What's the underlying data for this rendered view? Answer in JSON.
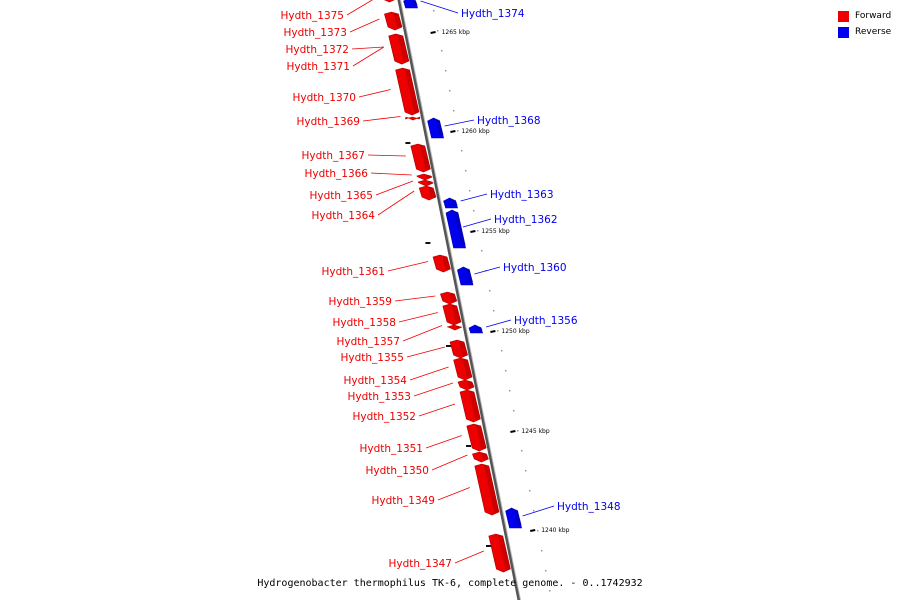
{
  "caption": "Hydrogenobacter thermophilus TK-6, complete genome. - 0..1742932",
  "legend": [
    {
      "label": "Forward",
      "color": "#ee0000"
    },
    {
      "label": "Reverse",
      "color": "#0000ee"
    }
  ],
  "colors": {
    "forward": "#ee0000",
    "reverse": "#0000ee",
    "backbone": "#888888"
  },
  "ticks": [
    "1265 kbp",
    "1260 kbp",
    "1255 kbp",
    "1250 kbp",
    "1245 kbp",
    "1240 kbp"
  ],
  "genes": [
    {
      "name": "Hydth_1375",
      "strand": "forward"
    },
    {
      "name": "Hydth_1374",
      "strand": "reverse"
    },
    {
      "name": "Hydth_1373",
      "strand": "forward"
    },
    {
      "name": "Hydth_1372",
      "strand": "forward"
    },
    {
      "name": "Hydth_1371",
      "strand": "forward"
    },
    {
      "name": "Hydth_1370",
      "strand": "forward"
    },
    {
      "name": "Hydth_1369",
      "strand": "forward"
    },
    {
      "name": "Hydth_1368",
      "strand": "reverse"
    },
    {
      "name": "Hydth_1367",
      "strand": "forward"
    },
    {
      "name": "Hydth_1366",
      "strand": "forward"
    },
    {
      "name": "Hydth_1365",
      "strand": "forward"
    },
    {
      "name": "Hydth_1364",
      "strand": "forward"
    },
    {
      "name": "Hydth_1363",
      "strand": "reverse"
    },
    {
      "name": "Hydth_1362",
      "strand": "reverse"
    },
    {
      "name": "Hydth_1361",
      "strand": "forward"
    },
    {
      "name": "Hydth_1360",
      "strand": "reverse"
    },
    {
      "name": "Hydth_1359",
      "strand": "forward"
    },
    {
      "name": "Hydth_1358",
      "strand": "forward"
    },
    {
      "name": "Hydth_1357",
      "strand": "forward"
    },
    {
      "name": "Hydth_1356",
      "strand": "reverse"
    },
    {
      "name": "Hydth_1355",
      "strand": "forward"
    },
    {
      "name": "Hydth_1354",
      "strand": "forward"
    },
    {
      "name": "Hydth_1353",
      "strand": "forward"
    },
    {
      "name": "Hydth_1352",
      "strand": "forward"
    },
    {
      "name": "Hydth_1351",
      "strand": "forward"
    },
    {
      "name": "Hydth_1350",
      "strand": "forward"
    },
    {
      "name": "Hydth_1349",
      "strand": "forward"
    },
    {
      "name": "Hydth_1348",
      "strand": "reverse"
    },
    {
      "name": "Hydth_1347",
      "strand": "forward"
    }
  ]
}
